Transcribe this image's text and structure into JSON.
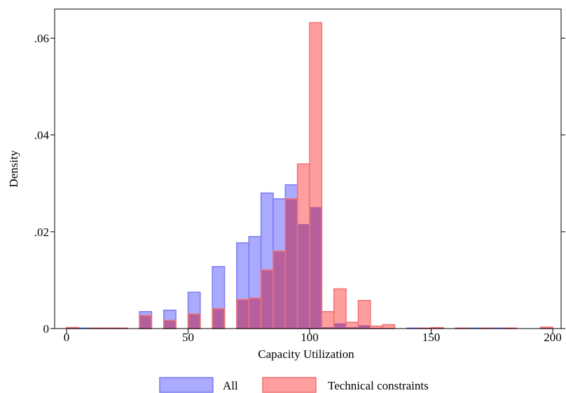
{
  "chart_data": {
    "type": "bar",
    "xlabel": "Capacity Utilization",
    "ylabel": "Density",
    "xlim": [
      0,
      200
    ],
    "ylim": [
      0,
      0.066
    ],
    "x_ticks": [
      0,
      50,
      100,
      150,
      200
    ],
    "x_tick_labels": [
      "0",
      "50",
      "100",
      "150",
      "200"
    ],
    "y_ticks": [
      0,
      0.02,
      0.04,
      0.06
    ],
    "y_tick_labels": [
      "0",
      ".02",
      ".04",
      ".06"
    ],
    "grid": false,
    "legend_position": "bottom",
    "bin_width": 5,
    "series": [
      {
        "name": "All",
        "color": "#7b7bf0",
        "fill": "#aaaaff",
        "bins": [
          [
            0,
            0.0002
          ],
          [
            5,
            0.0001
          ],
          [
            10,
            0.0001
          ],
          [
            15,
            0.0001
          ],
          [
            20,
            0.0001
          ],
          [
            30,
            0.0035
          ],
          [
            40,
            0.0038
          ],
          [
            50,
            0.0075
          ],
          [
            60,
            0.0128
          ],
          [
            70,
            0.0177
          ],
          [
            75,
            0.019
          ],
          [
            80,
            0.028
          ],
          [
            85,
            0.0268
          ],
          [
            90,
            0.0297
          ],
          [
            95,
            0.0217
          ],
          [
            100,
            0.0252
          ],
          [
            105,
            0.0004
          ],
          [
            110,
            0.0012
          ],
          [
            115,
            0.0004
          ],
          [
            120,
            0.0008
          ],
          [
            125,
            0.0002
          ],
          [
            130,
            0.0002
          ],
          [
            140,
            0.0001
          ],
          [
            145,
            0.0001
          ],
          [
            150,
            0.0001
          ],
          [
            160,
            0.0001
          ],
          [
            165,
            0.0001
          ],
          [
            170,
            0.0001
          ],
          [
            175,
            0.0001
          ],
          [
            180,
            0.0001
          ],
          [
            195,
            0.0001
          ]
        ]
      },
      {
        "name": "Technical constraints",
        "color": "#f07070",
        "fill": "#ff9e9e",
        "bins": [
          [
            0,
            0.0002
          ],
          [
            10,
            0.0001
          ],
          [
            15,
            0.0001
          ],
          [
            20,
            0.0001
          ],
          [
            30,
            0.0027
          ],
          [
            40,
            0.0017
          ],
          [
            50,
            0.003
          ],
          [
            60,
            0.0041
          ],
          [
            70,
            0.006
          ],
          [
            75,
            0.0063
          ],
          [
            80,
            0.0121
          ],
          [
            85,
            0.016
          ],
          [
            90,
            0.0268
          ],
          [
            95,
            0.034
          ],
          [
            100,
            0.0632
          ],
          [
            105,
            0.0035
          ],
          [
            110,
            0.0082
          ],
          [
            115,
            0.0013
          ],
          [
            120,
            0.0058
          ],
          [
            125,
            0.0005
          ],
          [
            130,
            0.0008
          ],
          [
            145,
            0.0001
          ],
          [
            150,
            0.0002
          ],
          [
            160,
            0.0001
          ],
          [
            170,
            0.0001
          ],
          [
            180,
            0.0001
          ],
          [
            195,
            0.0003
          ]
        ]
      }
    ],
    "overlap_color": "#b5609c"
  }
}
